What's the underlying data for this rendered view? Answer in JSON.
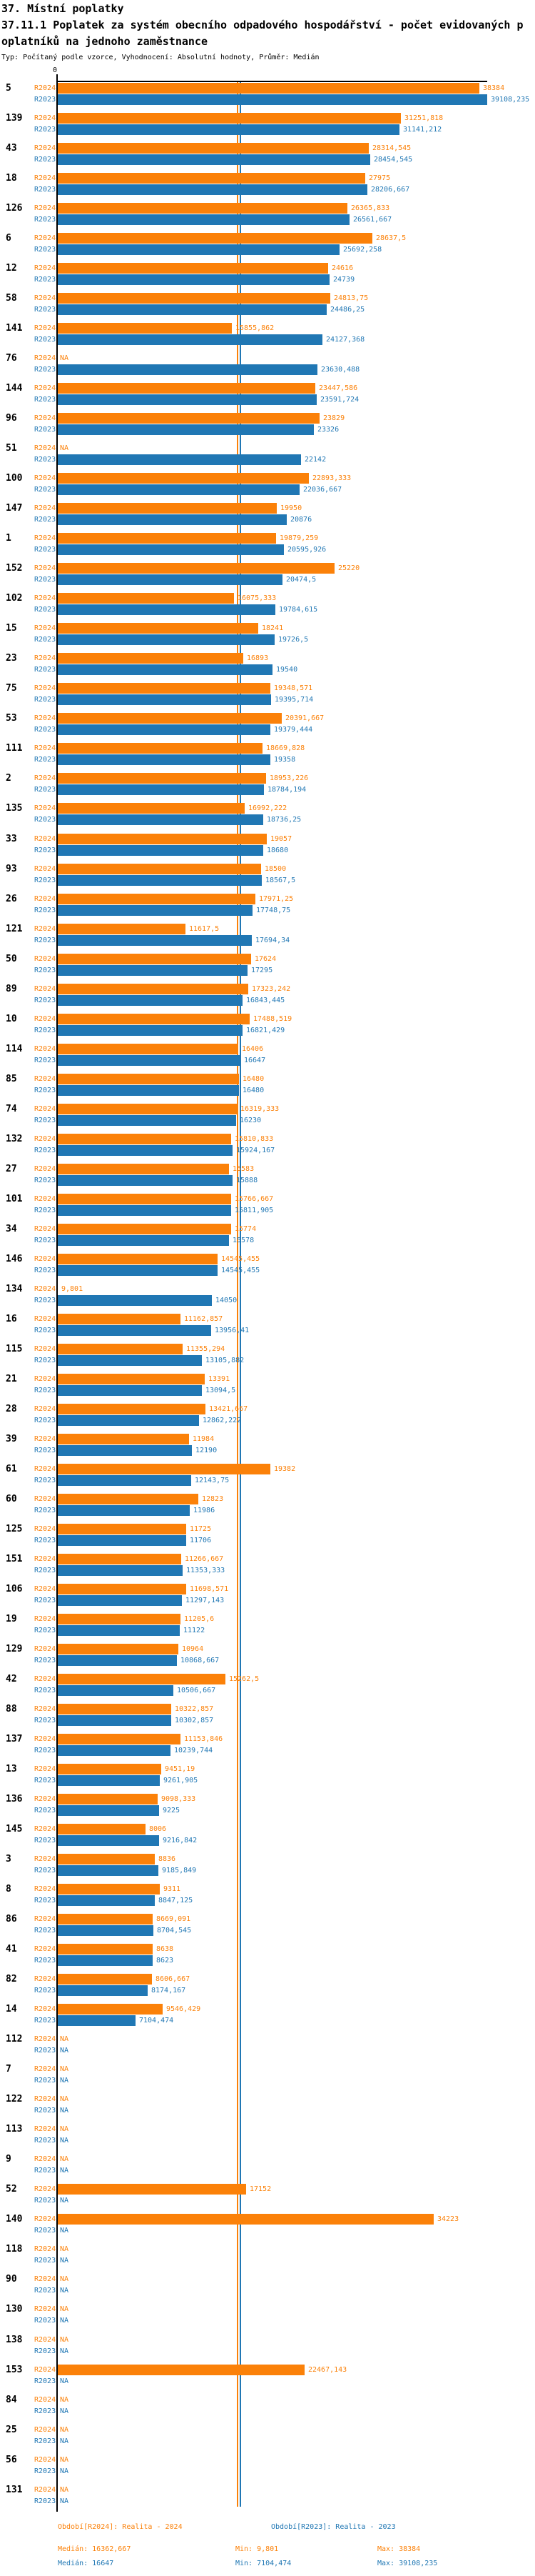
{
  "header": {
    "title_line1": "37. Místní poplatky",
    "title_line2": "37.11.1 Poplatek za systém obecního odpadového hospodářství - počet evidovaných p",
    "title_line3": "oplatníků na jednoho zaměstnance",
    "subtitle": "Typ: Počítaný podle vzorce, Vyhodnocení: Absolutní hodnoty, Průměr: Medián"
  },
  "chart_data": {
    "type": "bar",
    "orientation": "horizontal",
    "x_axis": {
      "zero_label": "0",
      "max_value": 39108.235,
      "grid": false
    },
    "legend_position": "bottom",
    "series": [
      {
        "key": "r2024",
        "label": "R2024",
        "color": "#FB8109",
        "median": 16362.667
      },
      {
        "key": "r2023",
        "label": "R2023",
        "color": "#2077B4",
        "median": 16647
      }
    ],
    "rows": [
      {
        "id": "5",
        "r2024": "38384",
        "r2023": "39108,235"
      },
      {
        "id": "139",
        "r2024": "31251,818",
        "r2023": "31141,212"
      },
      {
        "id": "43",
        "r2024": "28314,545",
        "r2023": "28454,545"
      },
      {
        "id": "18",
        "r2024": "27975",
        "r2023": "28206,667"
      },
      {
        "id": "126",
        "r2024": "26365,833",
        "r2023": "26561,667"
      },
      {
        "id": "6",
        "r2024": "28637,5",
        "r2023": "25692,258"
      },
      {
        "id": "12",
        "r2024": "24616",
        "r2023": "24739"
      },
      {
        "id": "58",
        "r2024": "24813,75",
        "r2023": "24486,25"
      },
      {
        "id": "141",
        "r2024": "15855,862",
        "r2023": "24127,368"
      },
      {
        "id": "76",
        "r2024": "NA",
        "r2023": "23630,488"
      },
      {
        "id": "144",
        "r2024": "23447,586",
        "r2023": "23591,724"
      },
      {
        "id": "96",
        "r2024": "23829",
        "r2023": "23326"
      },
      {
        "id": "51",
        "r2024": "NA",
        "r2023": "22142"
      },
      {
        "id": "100",
        "r2024": "22893,333",
        "r2023": "22036,667"
      },
      {
        "id": "147",
        "r2024": "19950",
        "r2023": "20876"
      },
      {
        "id": "1",
        "r2024": "19879,259",
        "r2023": "20595,926"
      },
      {
        "id": "152",
        "r2024": "25220",
        "r2023": "20474,5"
      },
      {
        "id": "102",
        "r2024": "16075,333",
        "r2023": "19784,615"
      },
      {
        "id": "15",
        "r2024": "18241",
        "r2023": "19726,5"
      },
      {
        "id": "23",
        "r2024": "16893",
        "r2023": "19540"
      },
      {
        "id": "75",
        "r2024": "19348,571",
        "r2023": "19395,714"
      },
      {
        "id": "53",
        "r2024": "20391,667",
        "r2023": "19379,444"
      },
      {
        "id": "111",
        "r2024": "18669,828",
        "r2023": "19358"
      },
      {
        "id": "2",
        "r2024": "18953,226",
        "r2023": "18784,194"
      },
      {
        "id": "135",
        "r2024": "16992,222",
        "r2023": "18736,25"
      },
      {
        "id": "33",
        "r2024": "19057",
        "r2023": "18680"
      },
      {
        "id": "93",
        "r2024": "18500",
        "r2023": "18567,5"
      },
      {
        "id": "26",
        "r2024": "17971,25",
        "r2023": "17748,75"
      },
      {
        "id": "121",
        "r2024": "11617,5",
        "r2023": "17694,34"
      },
      {
        "id": "50",
        "r2024": "17624",
        "r2023": "17295"
      },
      {
        "id": "89",
        "r2024": "17323,242",
        "r2023": "16843,445"
      },
      {
        "id": "10",
        "r2024": "17488,519",
        "r2023": "16821,429"
      },
      {
        "id": "114",
        "r2024": "16406",
        "r2023": "16647"
      },
      {
        "id": "85",
        "r2024": "16480",
        "r2023": "16480"
      },
      {
        "id": "74",
        "r2024": "16319,333",
        "r2023": "16230"
      },
      {
        "id": "132",
        "r2024": "15810,833",
        "r2023": "15924,167"
      },
      {
        "id": "27",
        "r2024": "15583",
        "r2023": "15888"
      },
      {
        "id": "101",
        "r2024": "15766,667",
        "r2023": "15811,905"
      },
      {
        "id": "34",
        "r2024": "15774",
        "r2023": "15578"
      },
      {
        "id": "146",
        "r2024": "14545,455",
        "r2023": "14545,455"
      },
      {
        "id": "134",
        "r2024": "9,801",
        "r2023": "14050"
      },
      {
        "id": "16",
        "r2024": "11162,857",
        "r2023": "13956,41"
      },
      {
        "id": "115",
        "r2024": "11355,294",
        "r2023": "13105,882"
      },
      {
        "id": "21",
        "r2024": "13391",
        "r2023": "13094,5"
      },
      {
        "id": "28",
        "r2024": "13421,667",
        "r2023": "12862,222"
      },
      {
        "id": "39",
        "r2024": "11984",
        "r2023": "12190"
      },
      {
        "id": "61",
        "r2024": "19382",
        "r2023": "12143,75"
      },
      {
        "id": "60",
        "r2024": "12823",
        "r2023": "11986"
      },
      {
        "id": "125",
        "r2024": "11725",
        "r2023": "11706"
      },
      {
        "id": "151",
        "r2024": "11266,667",
        "r2023": "11353,333"
      },
      {
        "id": "106",
        "r2024": "11698,571",
        "r2023": "11297,143"
      },
      {
        "id": "19",
        "r2024": "11205,6",
        "r2023": "11122"
      },
      {
        "id": "129",
        "r2024": "10964",
        "r2023": "10868,667"
      },
      {
        "id": "42",
        "r2024": "15262,5",
        "r2023": "10506,667"
      },
      {
        "id": "88",
        "r2024": "10322,857",
        "r2023": "10302,857"
      },
      {
        "id": "137",
        "r2024": "11153,846",
        "r2023": "10239,744"
      },
      {
        "id": "13",
        "r2024": "9451,19",
        "r2023": "9261,905"
      },
      {
        "id": "136",
        "r2024": "9098,333",
        "r2023": "9225"
      },
      {
        "id": "145",
        "r2024": "8006",
        "r2023": "9216,842"
      },
      {
        "id": "3",
        "r2024": "8836",
        "r2023": "9185,849"
      },
      {
        "id": "8",
        "r2024": "9311",
        "r2023": "8847,125"
      },
      {
        "id": "86",
        "r2024": "8669,091",
        "r2023": "8704,545"
      },
      {
        "id": "41",
        "r2024": "8638",
        "r2023": "8623"
      },
      {
        "id": "82",
        "r2024": "8606,667",
        "r2023": "8174,167"
      },
      {
        "id": "14",
        "r2024": "9546,429",
        "r2023": "7104,474"
      },
      {
        "id": "112",
        "r2024": "NA",
        "r2023": "NA"
      },
      {
        "id": "7",
        "r2024": "NA",
        "r2023": "NA"
      },
      {
        "id": "122",
        "r2024": "NA",
        "r2023": "NA"
      },
      {
        "id": "113",
        "r2024": "NA",
        "r2023": "NA"
      },
      {
        "id": "9",
        "r2024": "NA",
        "r2023": "NA"
      },
      {
        "id": "52",
        "r2024": "17152",
        "r2023": "NA"
      },
      {
        "id": "140",
        "r2024": "34223",
        "r2023": "NA"
      },
      {
        "id": "118",
        "r2024": "NA",
        "r2023": "NA"
      },
      {
        "id": "90",
        "r2024": "NA",
        "r2023": "NA"
      },
      {
        "id": "130",
        "r2024": "NA",
        "r2023": "NA"
      },
      {
        "id": "138",
        "r2024": "NA",
        "r2023": "NA"
      },
      {
        "id": "153",
        "r2024": "22467,143",
        "r2023": "NA"
      },
      {
        "id": "84",
        "r2024": "NA",
        "r2023": "NA"
      },
      {
        "id": "25",
        "r2024": "NA",
        "r2023": "NA"
      },
      {
        "id": "56",
        "r2024": "NA",
        "r2023": "NA"
      },
      {
        "id": "131",
        "r2024": "NA",
        "r2023": "NA"
      }
    ]
  },
  "footer": {
    "period_r2024": "Období[R2024]: Realita - 2024",
    "period_r2023": "Období[R2023]: Realita - 2023",
    "r2024_stats": {
      "median": "Medián: 16362,667",
      "min": "Min: 9,801",
      "max": "Max: 38384"
    },
    "r2023_stats": {
      "median": "Medián: 16647",
      "min": "Min: 7104,474",
      "max": "Max: 39108,235"
    }
  }
}
